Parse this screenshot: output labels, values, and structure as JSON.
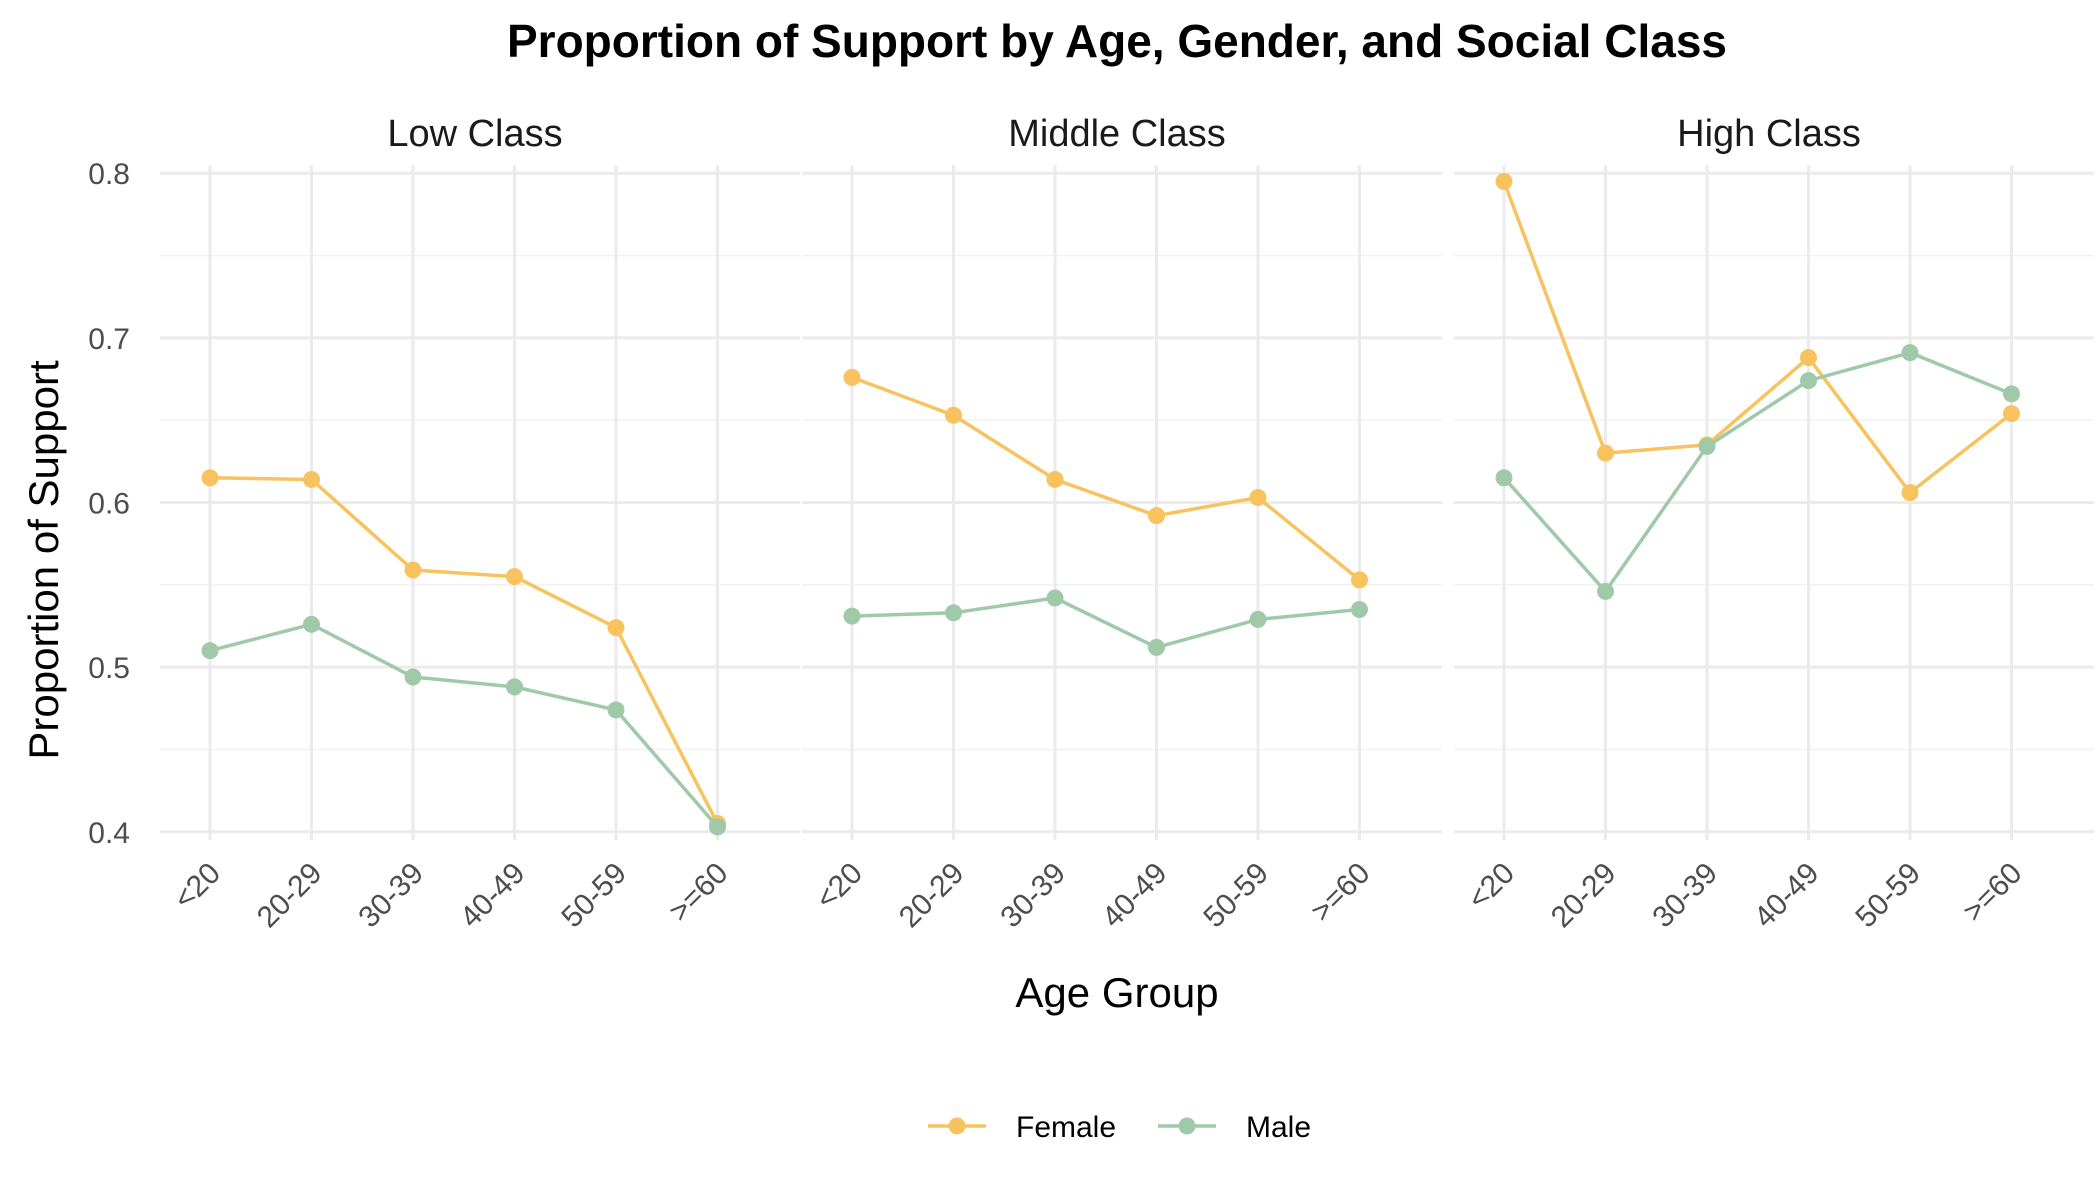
{
  "chart_data": {
    "type": "line",
    "title": "Proportion of Support by Age, Gender, and Social Class",
    "xlabel": "Age Group",
    "ylabel": "Proportion of Support",
    "categories": [
      "<20",
      "20-29",
      "30-39",
      "40-49",
      "50-59",
      ">=60"
    ],
    "ylim": [
      0.395,
      0.805
    ],
    "yticks": [
      "0.4",
      "0.5",
      "0.6",
      "0.7",
      "0.8"
    ],
    "legend_position": "bottom",
    "grid": true,
    "colors": {
      "Female": "#F8C35E",
      "Male": "#9FC9A8"
    },
    "panels": [
      {
        "name": "Low Class",
        "series": [
          {
            "name": "Female",
            "values": [
              0.615,
              0.614,
              0.559,
              0.555,
              0.524,
              0.405
            ]
          },
          {
            "name": "Male",
            "values": [
              0.51,
              0.526,
              0.494,
              0.488,
              0.474,
              0.403
            ]
          }
        ]
      },
      {
        "name": "Middle Class",
        "series": [
          {
            "name": "Female",
            "values": [
              0.676,
              0.653,
              0.614,
              0.592,
              0.603,
              0.553
            ]
          },
          {
            "name": "Male",
            "values": [
              0.531,
              0.533,
              0.542,
              0.512,
              0.529,
              0.535
            ]
          }
        ]
      },
      {
        "name": "High Class",
        "series": [
          {
            "name": "Female",
            "values": [
              0.795,
              0.63,
              0.635,
              0.688,
              0.606,
              0.654
            ]
          },
          {
            "name": "Male",
            "values": [
              0.615,
              0.546,
              0.634,
              0.674,
              0.691,
              0.666
            ]
          }
        ]
      }
    ],
    "legend": [
      "Female",
      "Male"
    ]
  }
}
